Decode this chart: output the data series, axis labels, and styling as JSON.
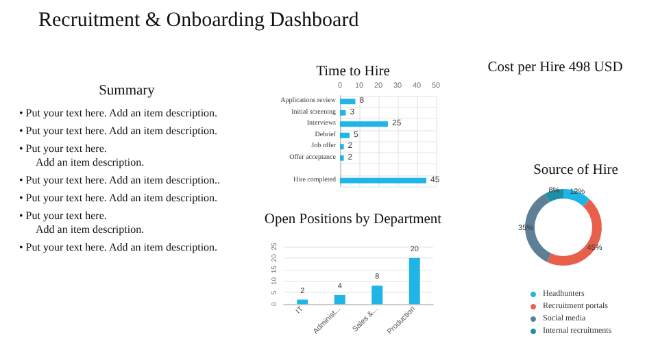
{
  "chart_data": [
    {
      "type": "other",
      "title": "Recruitment & Onboarding Dashboard"
    },
    {
      "type": "other",
      "title": "Summary",
      "annotations": [
        "• Put your text here. Add an item description.",
        "• Put your text here. Add an item description.",
        "• Put your text here.\nAdd an item description.",
        "• Put your text here. Add an item description..",
        "• Put your text here. Add an item description.",
        "• Put your text here.\nAdd an item description.",
        "• Put your text here. Add an item description."
      ]
    },
    {
      "type": "bar",
      "title": "Time to Hire",
      "orientation": "horizontal",
      "categories": [
        "Applications review",
        "Initial screening",
        "Interviews",
        "Debrief",
        "Job offer",
        "Offer acceptance",
        null,
        "Hire completed"
      ],
      "values": [
        8,
        3,
        25,
        5,
        2,
        2,
        null,
        45
      ],
      "color": "#1fb5e6",
      "xlim": [
        0,
        50
      ],
      "xticks": [
        0,
        10,
        20,
        30,
        40,
        50
      ],
      "grid": true,
      "data_labels": true
    },
    {
      "type": "other",
      "title": "Cost per Hire 498 USD"
    },
    {
      "type": "bar",
      "title": "Open Positions by Department",
      "categories": [
        "IT",
        "Administ...",
        "Sales &...",
        "Production"
      ],
      "values": [
        2,
        4,
        8,
        20
      ],
      "color": "#1fb5e6",
      "ylim": [
        0,
        25
      ],
      "yticks": [
        0,
        5,
        10,
        15,
        20,
        25
      ],
      "grid": "y",
      "data_labels": true
    },
    {
      "type": "donut",
      "title": "Source of Hire",
      "categories": [
        "Headhunters",
        "Recruitment portals",
        "Social media",
        "Internal recruitments"
      ],
      "values": [
        12,
        45,
        35,
        8
      ],
      "value_labels": [
        "12%",
        "45%",
        "35%",
        "8%"
      ],
      "colors": [
        "#1fb5e6",
        "#e8604c",
        "#5f7f96",
        "#1f8fa8"
      ],
      "data_labels": true,
      "legend": "bottom"
    }
  ]
}
